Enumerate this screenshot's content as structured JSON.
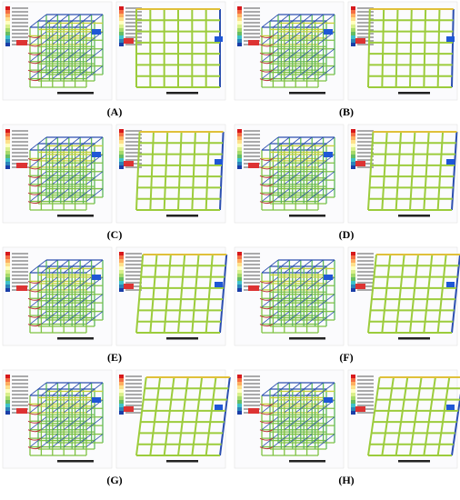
{
  "panels": [
    {
      "label": "(A)"
    },
    {
      "label": "(B)"
    },
    {
      "label": "(C)"
    },
    {
      "label": "(D)"
    },
    {
      "label": "(E)"
    },
    {
      "label": "(F)"
    },
    {
      "label": "(G)"
    },
    {
      "label": "(H)"
    }
  ]
}
